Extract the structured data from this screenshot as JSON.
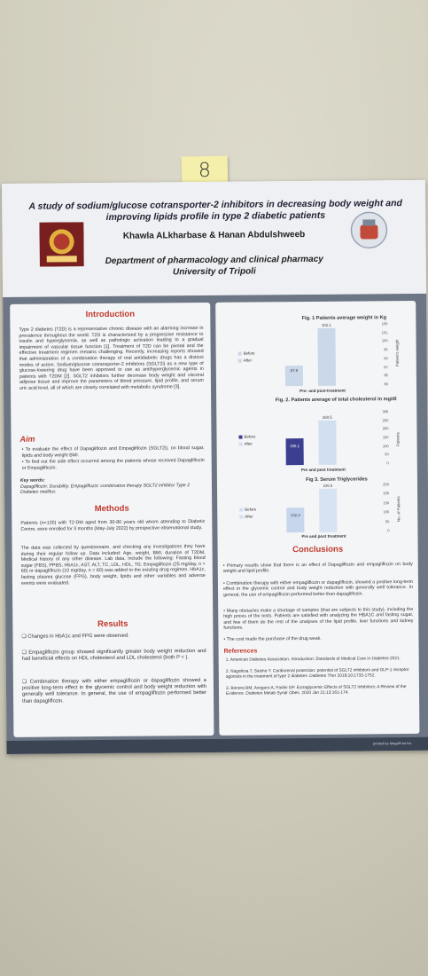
{
  "sticky_note": "8",
  "poster": {
    "title": "A study of sodium/glucose cotransporter-2 inhibitors in decreasing body weight and improving lipids profile in type 2 diabetic patients",
    "authors": "Khawla ALkharbase & Hanan Abdulshweeb",
    "department": "Department of pharmacology and clinical pharmacy",
    "university": "University of Tripoli",
    "introduction": {
      "heading": "Introduction",
      "text": "Type 2 diabetes (T2D) is a representative chronic disease with an alarming increase in prevalence throughout the world. T2D is characterized by a progressive resistance to insulin and hyperglycemia, as well as pathologic activation leading to a gradual impairment of vascular tissue function [1]. Treatment of T2D can be pivotal and the effective treatment regimen remains challenging. Recently, increasing reports showed that administration of a combination therapy of oral antidiabetic drugs has a distinct modes of action. Sodium/glucose cotransporter-2 inhibitors (SGLT2i) as a new type of glucose-lowering drug have been approved to use as antihyperglycemic agents in patients with T2DM [2]. SGLT2 inhibitors further decrease body weight and visceral adipose tissue and improve the parameters of blood pressure, lipid profile, and serum uric acid level, all of which are closely correlated with metabolic syndrome [3]."
    },
    "aim": {
      "heading": "Aim",
      "items": [
        "To evaluate the effect of Dapagliflozin and Empagliflozin (SGLT2i), on blood sugar, lipids and body weight BMI.",
        "To find out the side effect occurred among the patients whose received Dapagliflozin or Empagliflozin."
      ]
    },
    "keywords": {
      "heading": "Key words:",
      "text": "Dapagliflozin: Durability. Empagliflozin: combination therapy SGLT2 inhibitor Type 2 Diabetes mellitus"
    },
    "methods": {
      "heading": "Methods",
      "text1": "Patients (n=120) with T2-DM aged from 30-80 years old whom attending to Diabetic Centre, were enrolled for 3 months (May-July 2022) by prospective observational study.",
      "text2": "The data was collected by questionnaire, and checking any investigations they have during their regular follow up. Data included: Age, weight, BMI, duration of T2DM, Medical history of any other disease. Lab data, include the following: Fasting blood sugar (FBS), PPBS, HbA1c, AST, ALT, TC, LDL, HDL, TG. Empagliflozin (25 mg/day, n = 60) or dapagliflozin (10 mg/day, n = 60) was added to the existing drug regimen. HbA1c, fasting plasma glucose (FPG), body weight, lipids and other variables and adverse events were evaluated."
    },
    "results": {
      "heading": "Results",
      "items": [
        "Changes in HbA1c and FPG were observed.",
        "Empagliflozin group showed significantly greater body weight reduction and had beneficial effects on HDL cholesterol and LDL cholesterol (both P < ).",
        "Combination therapy with either empagliflozin or dapagliflozin showed a positive long-term effect in the glycemic control and body weight reduction with generally well tolerance. In general, the use of empagliflozin performed better than dapagliflozin."
      ]
    },
    "charts": {
      "fig1": {
        "title": "Fig. 1 Patients average weight in Kg",
        "xlabel": "Pre- and post-treatment",
        "ylabel": "Patient's weight",
        "before_label": "87.9",
        "after_label": "102.1",
        "legend_before": "Before",
        "legend_after": "After",
        "ticks": [
          "103",
          "101",
          "100",
          "95",
          "90",
          "87",
          "85",
          "80"
        ]
      },
      "fig2": {
        "title": "Fig. 2. Patients average of total cholesterol in mg/dl",
        "xlabel": "Pre and post treatment",
        "ylabel": "Patients",
        "before_label": "155.1",
        "after_label": "260.5",
        "legend_before": "Before",
        "legend_after": "After",
        "ticks": [
          "300",
          "250",
          "200",
          "150",
          "100",
          "50",
          "0"
        ]
      },
      "fig3": {
        "title": "Fig 3. Serum Triglycerides",
        "xlabel": "Pre and post treatment",
        "ylabel": "No. of Patients",
        "before_label": "132.3",
        "after_label": "236.6",
        "legend_before": "Before",
        "legend_after": "After",
        "ticks": [
          "250",
          "200",
          "150",
          "100",
          "50",
          "0"
        ]
      }
    },
    "conclusions": {
      "heading": "Conclusions",
      "items": [
        "Primary results show that there is an effect of Dapagliflozin and empagliflozin on body weight and lipid profile.",
        "Combination therapy with either empagliflozin or dapagliflozin, showed a positive long-term effect in the glycemic control and body weight reduction with generally well tolerance. In general, the use of empagliflozin performed better than dapagliflozin.",
        "Many obstacles make a shortage of samples (that are subjects to this study), including the high prices of the tests. Patients are satisfied with analyzing the HBA1C and fasting sugar, and few of them do the rest of the analyses of the lipid profile, liver functions and kidney functions.",
        "The cost made the purchase of the drug weak."
      ]
    },
    "references": {
      "heading": "References",
      "items": [
        "1. American Diabetes Association. Introduction: Standards of Medical Care in Diabetes-2021.",
        "2. Nagahisa T, Saisho Y. Cardiorenal protection: potential of SGLT2 inhibitors and GLP-1 receptor agonists in the treatment of type 2 diabetes. Diabetes Ther 2019;10:1733-1752.",
        "3. Bonora BM, Avogaro A, Fadini GP. Extraglycemic Effects of SGLT2 Inhibitors: A Review of the Evidence. Diabetes Metab Syndr Obes. 2020 Jan 21;13:161-174."
      ]
    },
    "footer": "printed by MegaPrint Inc."
  },
  "chart_data": [
    {
      "type": "bar",
      "title": "Fig. 1 Patients average weight in Kg",
      "categories": [
        "Pre- and post-treatment"
      ],
      "series": [
        {
          "name": "Before",
          "values": [
            87.9
          ]
        },
        {
          "name": "After",
          "values": [
            102.1
          ]
        }
      ],
      "xlabel": "Pre- and post-treatment",
      "ylabel": "Patient's weight",
      "ylim": [
        80,
        103
      ]
    },
    {
      "type": "bar",
      "title": "Fig. 2. Patients average of total cholesterol in mg/dl",
      "categories": [
        "Pre and post treatment"
      ],
      "series": [
        {
          "name": "Before",
          "values": [
            155.1
          ]
        },
        {
          "name": "After",
          "values": [
            260.5
          ]
        }
      ],
      "xlabel": "Pre and post treatment",
      "ylabel": "Patients",
      "ylim": [
        0,
        300
      ]
    },
    {
      "type": "bar",
      "title": "Fig 3. Serum Triglycerides",
      "categories": [
        "Pre and post treatment"
      ],
      "series": [
        {
          "name": "Before",
          "values": [
            132.3
          ]
        },
        {
          "name": "After",
          "values": [
            236.6
          ]
        }
      ],
      "xlabel": "Pre and post treatment",
      "ylabel": "No. of Patients",
      "ylim": [
        0,
        250
      ]
    }
  ],
  "colors": {
    "accent_red": "#c0392b",
    "bar_fig1": "#cbd8ea",
    "bar_dark": "#3c3f8f",
    "bar_light": "#d2dff0",
    "mid_panel": "#6d7684"
  }
}
